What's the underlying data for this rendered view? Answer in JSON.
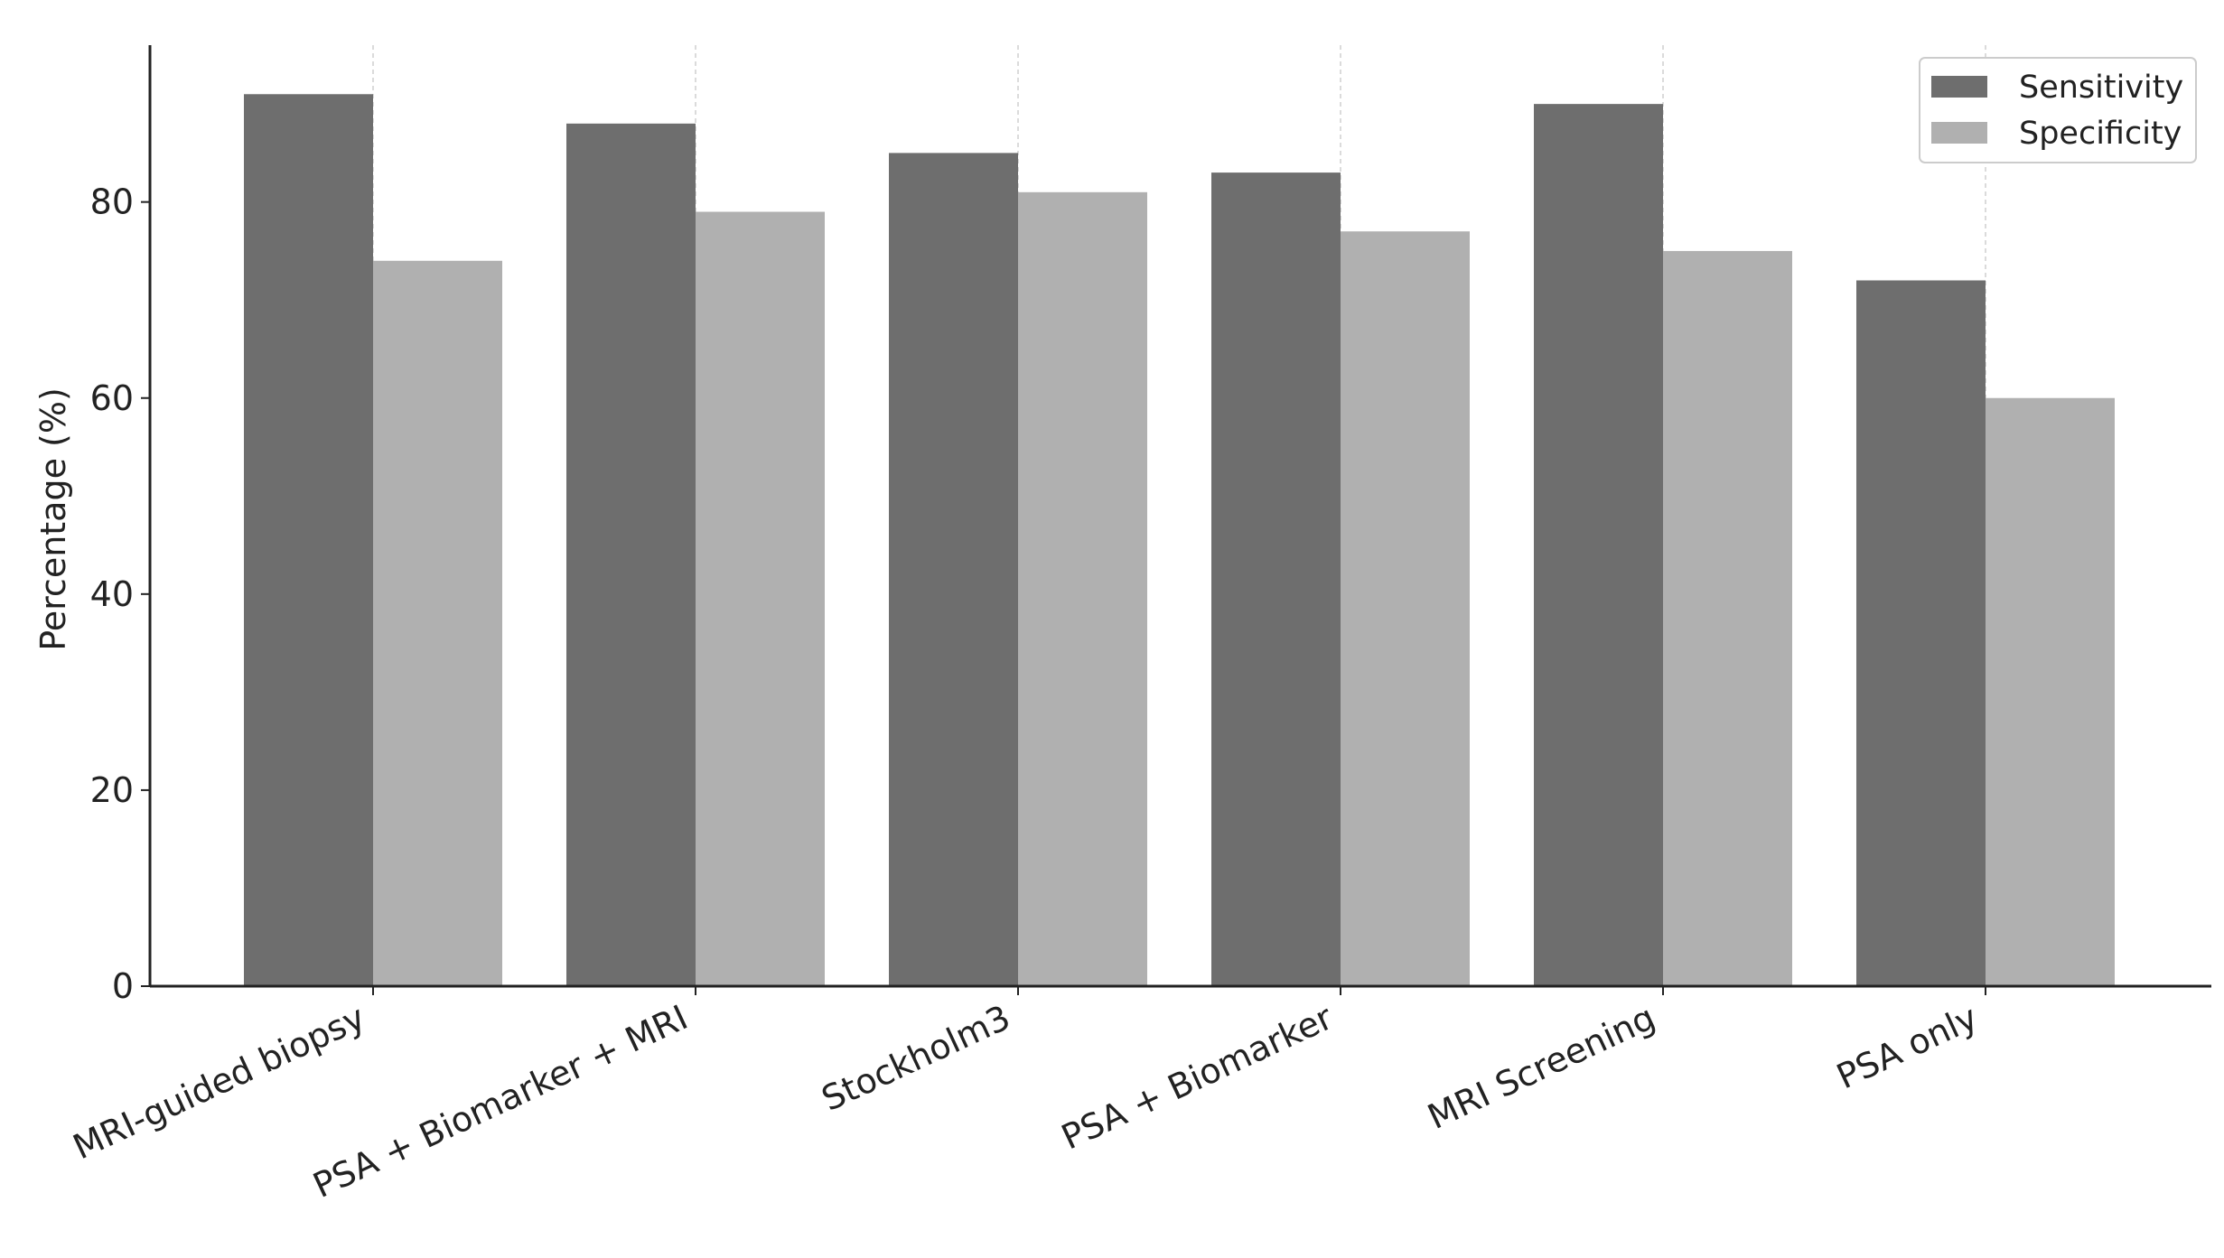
{
  "chart_data": {
    "type": "bar",
    "title": "",
    "xlabel": "",
    "ylabel": "Percentage (%)",
    "ylim": [
      0,
      96
    ],
    "yticks": [
      0,
      20,
      40,
      60,
      80
    ],
    "categories": [
      "MRI-guided biopsy",
      "PSA + Biomarker + MRI",
      "Stockholm3",
      "PSA + Biomarker",
      "MRI Screening",
      "PSA only"
    ],
    "series": [
      {
        "name": "Sensitivity",
        "color": "#6e6e6e",
        "values": [
          91,
          88,
          85,
          83,
          90,
          72
        ]
      },
      {
        "name": "Specificity",
        "color": "#b0b0b0",
        "values": [
          74,
          79,
          81,
          77,
          75,
          60
        ]
      }
    ],
    "grid": "vertical dashed gridlines at category centers",
    "legend_position": "top-right"
  }
}
